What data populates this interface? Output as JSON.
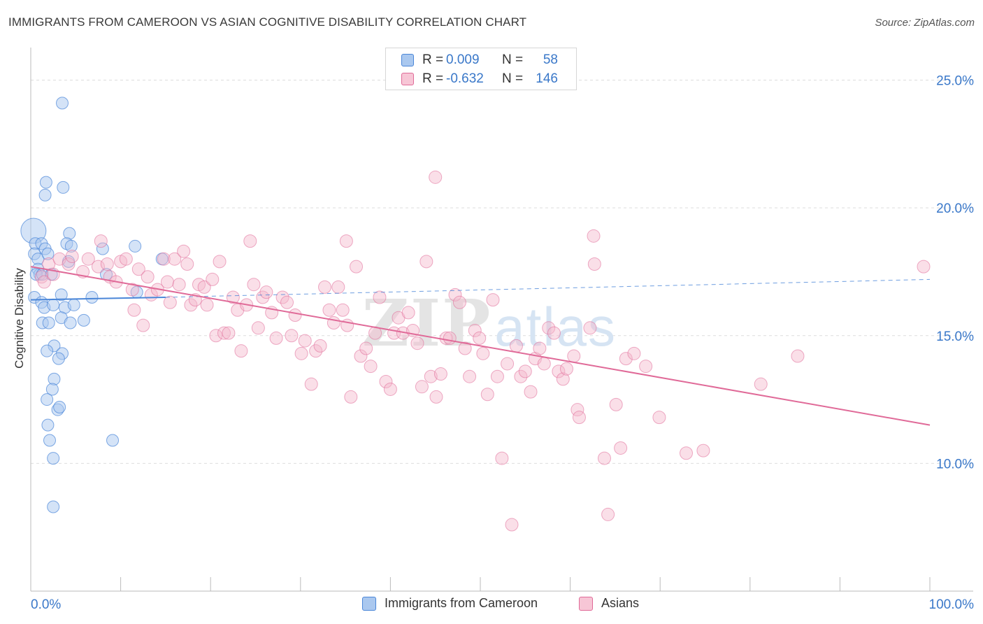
{
  "header": {
    "title": "IMMIGRANTS FROM CAMEROON VS ASIAN COGNITIVE DISABILITY CORRELATION CHART",
    "source": "Source: ZipAtlas.com"
  },
  "legend": {
    "rows": [
      {
        "r_label": "R =",
        "r_value": "0.009",
        "n_label": "N =",
        "n_value": "58"
      },
      {
        "r_label": "R =",
        "r_value": "-0.632",
        "n_label": "N =",
        "n_value": "146"
      }
    ]
  },
  "watermark": {
    "zip": "ZIP",
    "atlas": "atlas"
  },
  "colors": {
    "blue": "#4a86d8",
    "blue_fill": "#aac8ef",
    "pink": "#e06a98",
    "pink_fill": "#f3b8cc",
    "value_text": "#3a78c9",
    "grid": "#dddddd",
    "axis_text": "#3a78c9"
  },
  "chart_data": {
    "type": "scatter",
    "title": "IMMIGRANTS FROM CAMEROON VS ASIAN COGNITIVE DISABILITY CORRELATION CHART",
    "xlabel": "",
    "ylabel": "Cognitive Disability",
    "xlim": [
      0,
      100
    ],
    "ylim": [
      5,
      26
    ],
    "x_tick_labels": [
      "0.0%",
      "100.0%"
    ],
    "y_ticks": [
      10,
      15,
      20,
      25
    ],
    "y_tick_labels": [
      "10.0%",
      "15.0%",
      "20.0%",
      "25.0%"
    ],
    "grid": "horizontal dashed",
    "legend_position": "top-center",
    "series": [
      {
        "name": "Immigrants from Cameroon",
        "color": "#4a86d8",
        "trend": {
          "x": [
            0,
            15
          ],
          "y": [
            16.4,
            16.5
          ],
          "dashed_extension_to": [
            100,
            17.2
          ]
        },
        "points": [
          [
            0.3,
            19.1
          ],
          [
            3.5,
            24.1
          ],
          [
            1.7,
            21.0
          ],
          [
            3.6,
            20.8
          ],
          [
            1.6,
            20.5
          ],
          [
            4.3,
            19.0
          ],
          [
            0.5,
            18.6
          ],
          [
            1.2,
            18.6
          ],
          [
            1.6,
            18.4
          ],
          [
            4.0,
            18.6
          ],
          [
            4.5,
            18.5
          ],
          [
            11.6,
            18.5
          ],
          [
            0.4,
            18.2
          ],
          [
            0.8,
            18.0
          ],
          [
            1.9,
            18.2
          ],
          [
            8.0,
            18.4
          ],
          [
            14.6,
            18.0
          ],
          [
            4.2,
            17.9
          ],
          [
            0.8,
            17.6
          ],
          [
            1.0,
            17.4
          ],
          [
            0.6,
            17.4
          ],
          [
            1.3,
            17.4
          ],
          [
            2.3,
            17.4
          ],
          [
            8.4,
            17.4
          ],
          [
            0.4,
            16.5
          ],
          [
            1.2,
            16.3
          ],
          [
            3.4,
            16.6
          ],
          [
            6.8,
            16.5
          ],
          [
            11.8,
            16.7
          ],
          [
            1.5,
            16.1
          ],
          [
            2.5,
            16.2
          ],
          [
            3.8,
            16.1
          ],
          [
            4.8,
            16.2
          ],
          [
            1.3,
            15.5
          ],
          [
            2.0,
            15.5
          ],
          [
            3.4,
            15.7
          ],
          [
            4.4,
            15.5
          ],
          [
            5.9,
            15.6
          ],
          [
            2.6,
            14.6
          ],
          [
            1.8,
            14.4
          ],
          [
            3.5,
            14.3
          ],
          [
            3.1,
            14.1
          ],
          [
            2.6,
            13.3
          ],
          [
            2.4,
            12.9
          ],
          [
            1.8,
            12.5
          ],
          [
            3.0,
            12.1
          ],
          [
            3.2,
            12.2
          ],
          [
            1.9,
            11.5
          ],
          [
            2.1,
            10.9
          ],
          [
            9.1,
            10.9
          ],
          [
            2.5,
            10.2
          ],
          [
            2.5,
            8.3
          ]
        ]
      },
      {
        "name": "Asians",
        "color": "#e06a98",
        "trend": {
          "x": [
            0,
            100
          ],
          "y": [
            17.7,
            11.5
          ]
        },
        "points": [
          [
            1.2,
            17.3
          ],
          [
            1.5,
            17.1
          ],
          [
            2.0,
            17.8
          ],
          [
            2.5,
            17.4
          ],
          [
            3.2,
            18.0
          ],
          [
            4.2,
            17.8
          ],
          [
            4.6,
            18.1
          ],
          [
            5.8,
            17.5
          ],
          [
            6.4,
            18.0
          ],
          [
            7.5,
            17.7
          ],
          [
            7.8,
            18.7
          ],
          [
            8.5,
            17.8
          ],
          [
            8.8,
            17.3
          ],
          [
            9.5,
            17.1
          ],
          [
            10.0,
            17.9
          ],
          [
            10.6,
            18.0
          ],
          [
            11.3,
            16.8
          ],
          [
            11.5,
            16.0
          ],
          [
            12.0,
            17.6
          ],
          [
            12.5,
            15.4
          ],
          [
            13.0,
            17.3
          ],
          [
            13.4,
            16.6
          ],
          [
            14.1,
            16.8
          ],
          [
            14.8,
            18.0
          ],
          [
            15.2,
            17.1
          ],
          [
            15.5,
            16.3
          ],
          [
            16.0,
            18.0
          ],
          [
            16.5,
            17.0
          ],
          [
            17.0,
            18.3
          ],
          [
            17.4,
            17.8
          ],
          [
            17.8,
            16.2
          ],
          [
            18.3,
            16.4
          ],
          [
            18.7,
            17.0
          ],
          [
            19.3,
            16.9
          ],
          [
            19.6,
            16.2
          ],
          [
            20.2,
            17.2
          ],
          [
            20.6,
            15.0
          ],
          [
            21.0,
            17.9
          ],
          [
            21.5,
            15.1
          ],
          [
            22.0,
            15.1
          ],
          [
            22.5,
            16.5
          ],
          [
            23.0,
            16.0
          ],
          [
            23.4,
            14.4
          ],
          [
            24.0,
            16.2
          ],
          [
            24.4,
            18.7
          ],
          [
            24.8,
            17.0
          ],
          [
            25.3,
            15.3
          ],
          [
            25.8,
            16.5
          ],
          [
            26.2,
            16.7
          ],
          [
            26.8,
            15.9
          ],
          [
            27.3,
            14.9
          ],
          [
            28.0,
            16.5
          ],
          [
            28.5,
            16.3
          ],
          [
            29.0,
            15.0
          ],
          [
            29.4,
            15.8
          ],
          [
            30.1,
            14.3
          ],
          [
            30.5,
            14.8
          ],
          [
            31.2,
            13.1
          ],
          [
            31.7,
            14.4
          ],
          [
            32.2,
            14.6
          ],
          [
            32.7,
            16.9
          ],
          [
            33.2,
            16.0
          ],
          [
            33.7,
            15.5
          ],
          [
            34.2,
            16.9
          ],
          [
            34.7,
            16.0
          ],
          [
            35.2,
            15.4
          ],
          [
            35.6,
            12.6
          ],
          [
            36.2,
            17.7
          ],
          [
            36.7,
            14.2
          ],
          [
            37.3,
            14.5
          ],
          [
            37.8,
            13.8
          ],
          [
            38.3,
            15.1
          ],
          [
            38.8,
            16.5
          ],
          [
            39.5,
            13.2
          ],
          [
            40.0,
            12.9
          ],
          [
            40.4,
            15.1
          ],
          [
            40.9,
            15.7
          ],
          [
            41.4,
            15.1
          ],
          [
            42.0,
            15.9
          ],
          [
            42.5,
            15.2
          ],
          [
            43.0,
            14.7
          ],
          [
            43.5,
            13.0
          ],
          [
            44.0,
            17.9
          ],
          [
            44.5,
            13.4
          ],
          [
            45.1,
            12.6
          ],
          [
            45.6,
            13.5
          ],
          [
            46.2,
            14.9
          ],
          [
            46.6,
            14.9
          ],
          [
            47.2,
            16.6
          ],
          [
            47.7,
            16.3
          ],
          [
            48.3,
            14.5
          ],
          [
            48.8,
            13.4
          ],
          [
            49.4,
            15.2
          ],
          [
            49.9,
            14.9
          ],
          [
            50.3,
            14.3
          ],
          [
            50.8,
            12.7
          ],
          [
            51.4,
            16.4
          ],
          [
            51.9,
            13.4
          ],
          [
            52.4,
            10.2
          ],
          [
            53.0,
            13.9
          ],
          [
            53.5,
            7.6
          ],
          [
            54.0,
            14.6
          ],
          [
            54.5,
            13.4
          ],
          [
            55.0,
            13.6
          ],
          [
            55.6,
            12.8
          ],
          [
            56.1,
            14.1
          ],
          [
            56.6,
            14.5
          ],
          [
            57.1,
            13.9
          ],
          [
            57.6,
            15.3
          ],
          [
            58.2,
            15.1
          ],
          [
            58.7,
            13.6
          ],
          [
            59.2,
            13.3
          ],
          [
            59.6,
            13.7
          ],
          [
            60.4,
            14.2
          ],
          [
            60.8,
            12.1
          ],
          [
            61.0,
            11.8
          ],
          [
            62.2,
            15.3
          ],
          [
            62.7,
            17.8
          ],
          [
            63.8,
            10.2
          ],
          [
            64.2,
            8.0
          ],
          [
            65.1,
            12.3
          ],
          [
            65.6,
            10.6
          ],
          [
            66.2,
            14.1
          ],
          [
            67.1,
            14.3
          ],
          [
            68.4,
            13.8
          ],
          [
            69.9,
            11.8
          ],
          [
            72.9,
            10.4
          ],
          [
            74.8,
            10.5
          ],
          [
            81.2,
            13.1
          ],
          [
            85.3,
            14.2
          ],
          [
            99.3,
            17.7
          ],
          [
            45.0,
            21.2
          ],
          [
            62.6,
            18.9
          ],
          [
            35.1,
            18.7
          ]
        ]
      }
    ]
  }
}
